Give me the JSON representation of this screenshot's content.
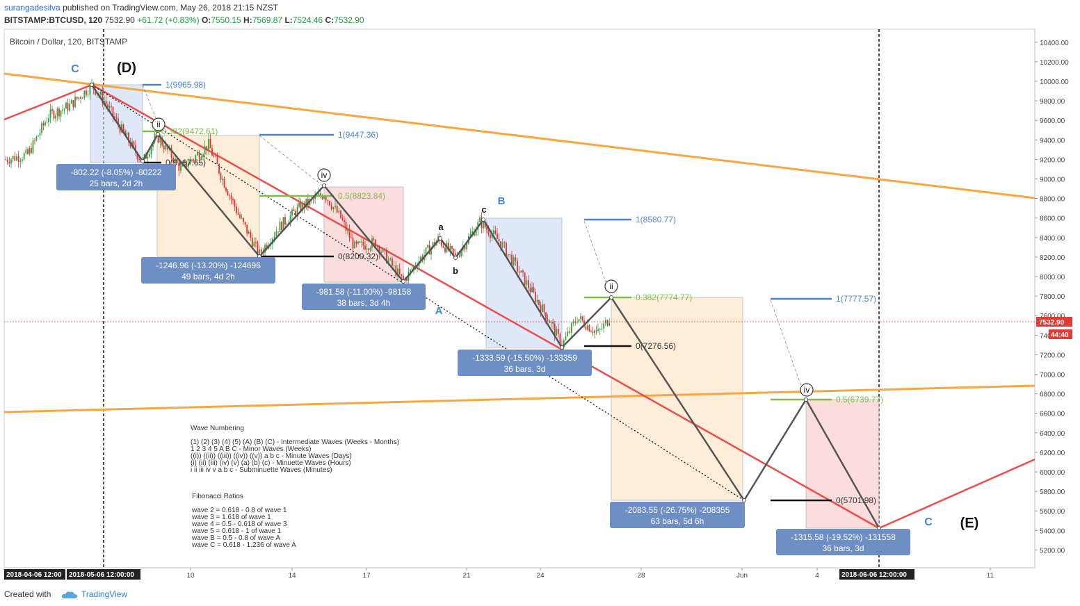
{
  "header": {
    "author": "surangadesilva",
    "published": "published on TradingView.com, May 26, 2018 21:15 NZST",
    "symbol": "BITSTAMP:BTCUSD, 120",
    "price": "7532.90",
    "change": "+61.72 (+0.83%)",
    "open_label": "O:",
    "open": "7550.15",
    "high_label": "H:",
    "high": "7569.87",
    "low_label": "L:",
    "low": "7524.46",
    "close_label": "C:",
    "close": "7532.90"
  },
  "chart_title": "Bitcoin / Dollar, 120, BITSTAMP",
  "footer": {
    "created_with": "Created with",
    "brand": "TradingView"
  },
  "colors": {
    "up": "#2ca43c",
    "down": "#e03131",
    "trend_red": "#ee4b4b",
    "trend_orange": "#f7a640",
    "label_box": "#6d8fc4",
    "wave_line": "#555555",
    "fib_blue": "#4a83d4",
    "fib_green": "#7ac142",
    "price_tag": "#e53935"
  },
  "chart_data": {
    "type": "candlestick",
    "title": "Bitcoin / Dollar, 120, BITSTAMP",
    "y_range": [
      5050,
      10500
    ],
    "y_ticks": [
      "10400.00",
      "10200.00",
      "10000.00",
      "9800.00",
      "9600.00",
      "9400.00",
      "9200.00",
      "9000.00",
      "8800.00",
      "8600.00",
      "8400.00",
      "8200.00",
      "8000.00",
      "7800.00",
      "7600.00",
      "7400.00",
      "7200.00",
      "7000.00",
      "6800.00",
      "6600.00",
      "6400.00",
      "6200.00",
      "6000.00",
      "5800.00",
      "5600.00",
      "5400.00",
      "5200.00"
    ],
    "x_ticks": [
      "10",
      "14",
      "17",
      "21",
      "24",
      "28",
      "Jun",
      "4",
      "11"
    ],
    "x_highlight_left": [
      "2018-04-06 12:00",
      "2018-05-06 12:00:00"
    ],
    "x_highlight_right": "2018-06-06 12:00:00",
    "current_price": "7532.90",
    "countdown": "44:40",
    "wave_path": [
      {
        "x": "May 06",
        "y": 9965
      },
      {
        "x": "May 08",
        "y": 9163
      },
      {
        "x": "May 08",
        "y": 9472
      },
      {
        "x": "May 13",
        "y": 8225
      },
      {
        "x": "May 15",
        "y": 8920
      },
      {
        "x": "May 18",
        "y": 7939
      },
      {
        "x": "May 20",
        "y": 8400
      },
      {
        "x": "May 20",
        "y": 8180
      },
      {
        "x": "May 22",
        "y": 8580
      },
      {
        "x": "May 25",
        "y": 7276
      },
      {
        "x": "May 27",
        "y": 7774
      },
      {
        "x": "May 31",
        "y": 5701
      },
      {
        "x": "Jun 03",
        "y": 6740
      },
      {
        "x": "Jun 06",
        "y": 5415
      }
    ],
    "wave_labels": [
      "C",
      "(D)",
      "ii",
      "iv",
      "a",
      "b",
      "c",
      "B",
      "A",
      "ii",
      "iv",
      "C",
      "(E)"
    ],
    "fib_levels": [
      "1(9965.98)",
      "0.382(9472.61)",
      "0(9167.65)",
      "1(9447.36)",
      "0.5(8823.84)",
      "0(8200.32)",
      "1(8580.77)",
      "0.382(7774.77)",
      "0(7276.56)",
      "1(7777.57)",
      "0.5(6739.77)",
      "0(5701.98)"
    ],
    "measures": [
      {
        "line1": "-802.22 (-8.05%) -80222",
        "line2": "25 bars, 2d 2h"
      },
      {
        "line1": "-1246.96 (-13.20%) -124696",
        "line2": "49 bars, 4d 2h"
      },
      {
        "line1": "-981.58 (-11.00%) -98158",
        "line2": "38 bars, 3d 4h"
      },
      {
        "line1": "-1333.59 (-15.50%) -133359",
        "line2": "36 bars, 3d"
      },
      {
        "line1": "-2083.55 (-26.75%) -208355",
        "line2": "63 bars, 5d 6h"
      },
      {
        "line1": "-1315.58 (-19.52%) -131558",
        "line2": "36 bars, 3d"
      }
    ],
    "notes": {
      "wave_title": "Wave Numbering",
      "wave_lines": [
        "(1) (2) (3) (4) (5) (A) (B) (C) - Intermediate Waves (Weeks - Months)",
        "1 2 3 4 5 A B C - Minor Waves (Weeks)",
        "((i)) ((ii)) ((iii)) ((iv)) ((v)) a b c - Minute Waves (Days)",
        "(i) (ii) (iii) (iv) (v) (a) (b) (c) - Minuette Waves (Hours)",
        "i ii iii iv v a b c - Subminuette Waves (Minutes)"
      ],
      "fib_title": "Fibonacci Ratios",
      "fib_lines": [
        "wave 2 = 0.618 - 0.8 of wave 1",
        "wave 3 = 1.618 of wave 1",
        "wave 4 = 0.5 - 0.618 of wave 3",
        "wave 5 = 0.618 - 1 of wave 1",
        "wave B = 0.5 - 0.8 of wave A",
        "wave C = 0.618 - 1.236 of wave A"
      ]
    }
  }
}
